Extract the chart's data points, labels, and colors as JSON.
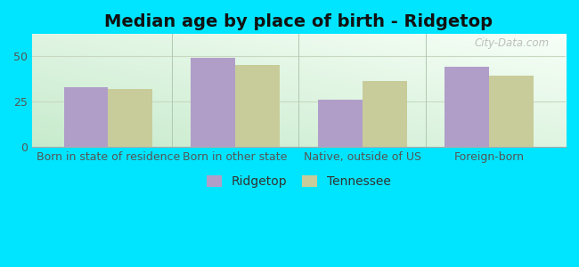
{
  "title": "Median age by place of birth - Ridgetop",
  "categories": [
    "Born in state of residence",
    "Born in other state",
    "Native, outside of US",
    "Foreign-born"
  ],
  "ridgetop_values": [
    33,
    49,
    26,
    44
  ],
  "tennessee_values": [
    32,
    45,
    36,
    39
  ],
  "ridgetop_color": "#b09ec9",
  "tennessee_color": "#c8cc9a",
  "background_outer": "#00e5ff",
  "ylim": [
    0,
    62
  ],
  "yticks": [
    0,
    25,
    50
  ],
  "bar_width": 0.35,
  "legend_labels": [
    "Ridgetop",
    "Tennessee"
  ],
  "title_fontsize": 14,
  "tick_fontsize": 9,
  "legend_fontsize": 10,
  "grid_color": "#c8d8c0",
  "watermark": "City-Data.com"
}
